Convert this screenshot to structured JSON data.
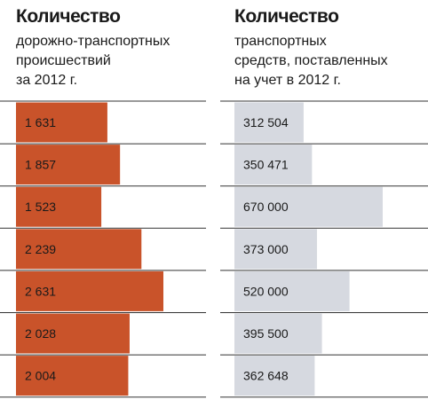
{
  "left_header": {
    "title": "Количество",
    "subtitle": "дорожно-транспортных\nпроисшествий\nза 2012 г."
  },
  "right_header": {
    "title": "Количество",
    "subtitle": "транспортных\nсредств, поставленных\nна учет в 2012 г."
  },
  "colors": {
    "accidents_bar": "#c9532a",
    "vehicles_bar": "#d6d9e0",
    "row_divider": "#333333"
  },
  "chart_data": [
    {
      "type": "bar",
      "orientation": "horizontal",
      "title": "Количество",
      "subtitle": "дорожно-транспортных происшествий за 2012 г.",
      "values": [
        1631,
        1857,
        1523,
        2239,
        2631,
        2028,
        2004
      ],
      "value_labels": [
        "1 631",
        "1 857",
        "1 523",
        "2 239",
        "2 631",
        "2 028",
        "2 004"
      ],
      "xlim": [
        0,
        2631
      ]
    },
    {
      "type": "bar",
      "orientation": "horizontal",
      "title": "Количество",
      "subtitle": "транспортных средств, поставленных на учет в 2012 г.",
      "values": [
        312504,
        350471,
        670000,
        373000,
        520000,
        395500,
        362648
      ],
      "value_labels": [
        "312 504",
        "350 471",
        "670 000",
        "373 000",
        "520 000",
        "395 500",
        "362 648"
      ],
      "xlim": [
        0,
        670000
      ]
    }
  ]
}
